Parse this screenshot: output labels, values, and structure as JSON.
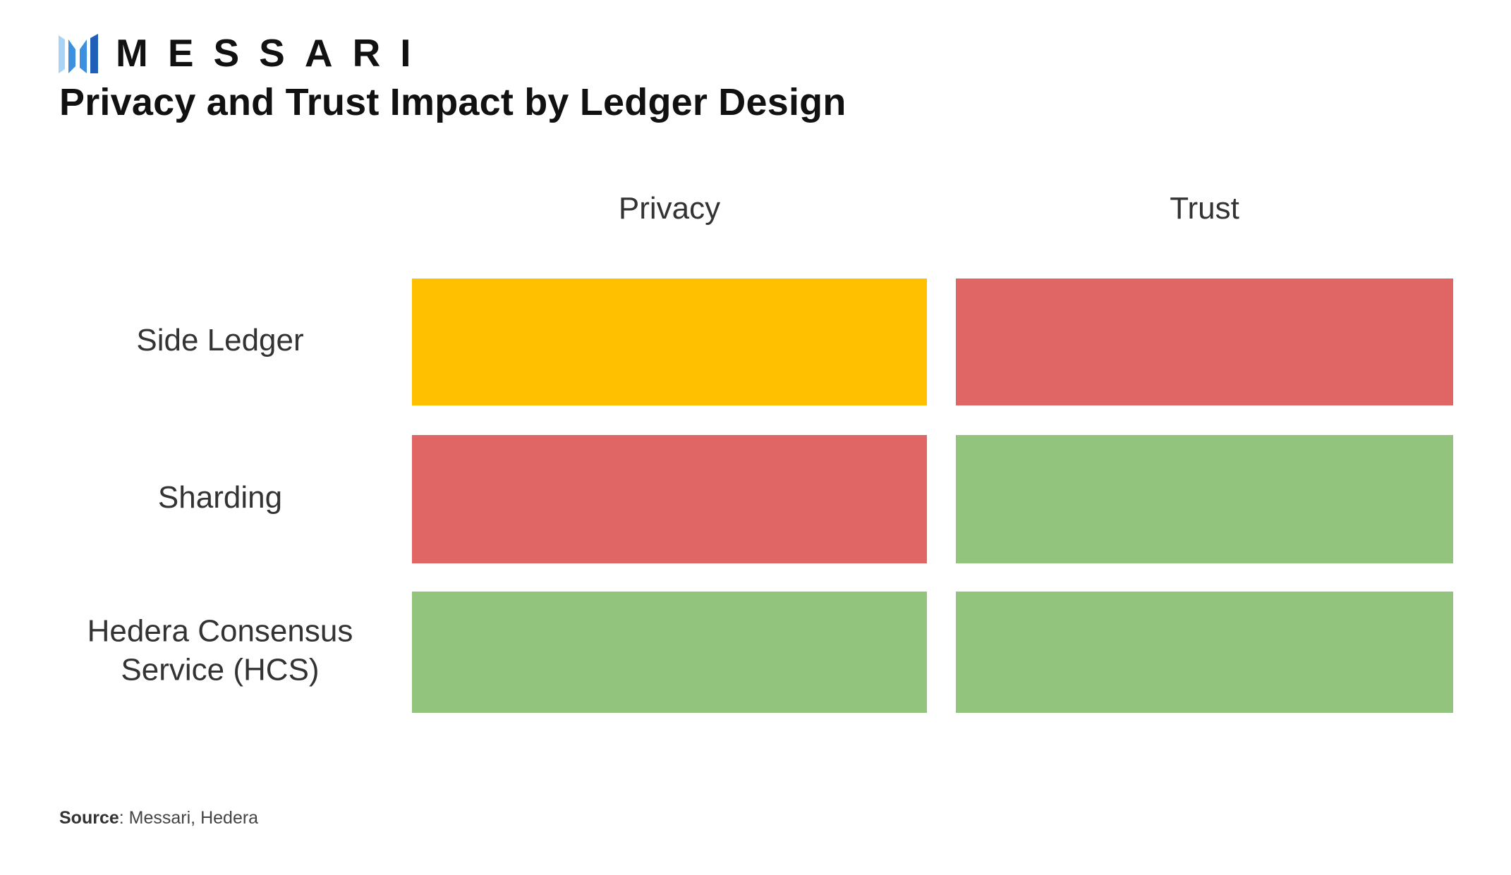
{
  "brand": {
    "name": "MESSARI",
    "icon": "messari-logo-icon",
    "colors": {
      "mark_light": "#a9d4f5",
      "mark_mid": "#3d8fe0",
      "mark_dark": "#1f5fb8",
      "text": "#111111"
    }
  },
  "chart_data": {
    "type": "heatmap",
    "title": "Privacy and Trust Impact by Ledger Design",
    "columns": [
      "Privacy",
      "Trust"
    ],
    "rows": [
      {
        "label_lines": [
          "Side Ledger"
        ],
        "cells": [
          "medium",
          "low"
        ]
      },
      {
        "label_lines": [
          "Sharding"
        ],
        "cells": [
          "low",
          "high"
        ]
      },
      {
        "label_lines": [
          "Hedera Consensus",
          "Service (HCS)"
        ],
        "cells": [
          "high",
          "high"
        ]
      }
    ],
    "color_scale": {
      "high": "#93c47d",
      "medium": "#ffc000",
      "low": "#e06666"
    },
    "grid": false,
    "legend": "none"
  },
  "source": {
    "label": "Source",
    "separator": ":",
    "text": "Messari, Hedera"
  }
}
